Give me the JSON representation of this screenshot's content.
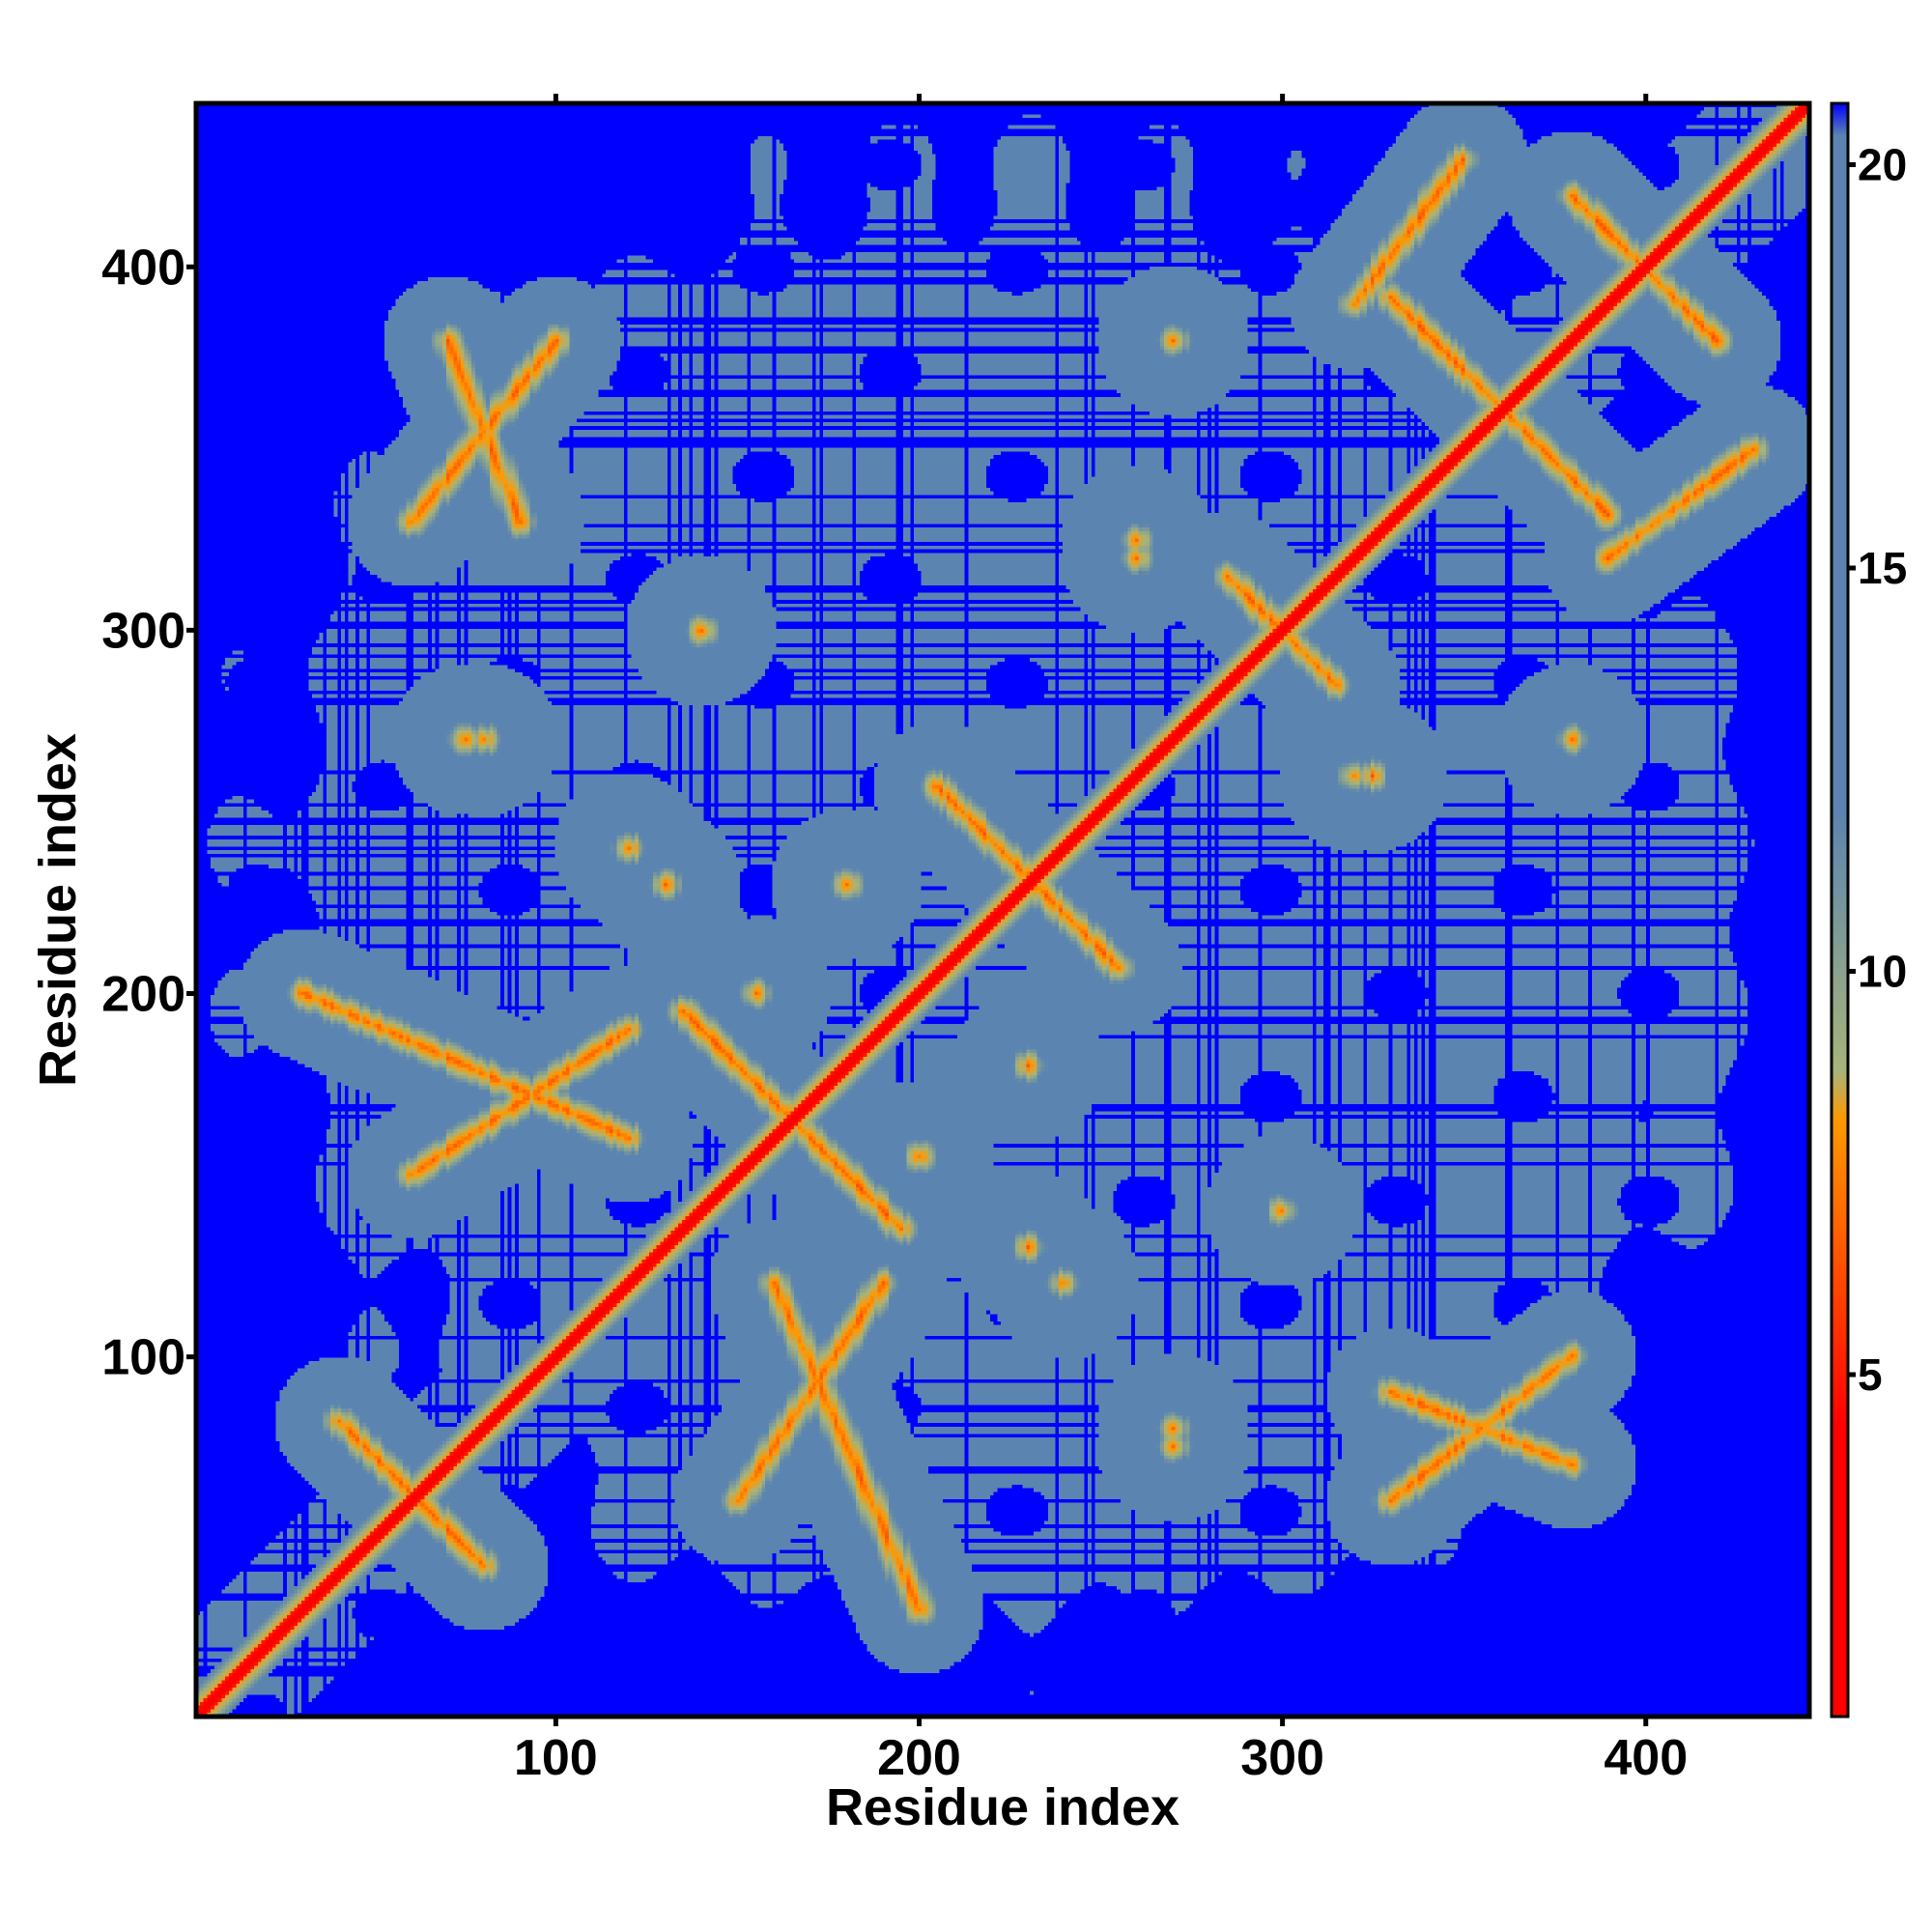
{
  "chart_data": {
    "type": "heatmap",
    "title": "",
    "xlabel": "Residue index",
    "ylabel": "Residue index",
    "n_residues": 445,
    "xlim": [
      1,
      445
    ],
    "ylim": [
      1,
      445
    ],
    "x_ticks": [
      100,
      200,
      300,
      400
    ],
    "y_ticks": [
      100,
      200,
      300,
      400
    ],
    "colorbar": {
      "ticks": [
        5,
        10,
        15,
        20
      ],
      "range": [
        1,
        21
      ],
      "colors": {
        "near": "#ff0000",
        "mid": "#ff9900",
        "transition": "#a8b47a",
        "far": "#5b85b0",
        "beyond": "#0000ff"
      },
      "threshold_beyond": 20.5
    },
    "description_of_values": "distance map; diagonal ~1-3, contacts ~5-8, protein interior ~12-20, background >20",
    "contact_features": [
      {
        "kind": "diagonal",
        "from": 1,
        "to": 445
      },
      {
        "kind": "anti_band",
        "cx": 60,
        "cy": 62,
        "len": 40
      },
      {
        "kind": "anti_band",
        "cx": 165,
        "cy": 165,
        "len": 60
      },
      {
        "kind": "anti_band",
        "cx": 230,
        "cy": 232,
        "len": 50
      },
      {
        "kind": "anti_band",
        "cx": 300,
        "cy": 300,
        "len": 30
      },
      {
        "kind": "anti_band",
        "cx": 360,
        "cy": 362,
        "len": 60
      },
      {
        "kind": "anti_band",
        "cx": 400,
        "cy": 400,
        "len": 40
      },
      {
        "kind": "parallel_band",
        "x0": 30,
        "y0": 200,
        "x1": 120,
        "y1": 160
      },
      {
        "kind": "parallel_band",
        "x0": 70,
        "y0": 380,
        "x1": 90,
        "y1": 330
      },
      {
        "kind": "parallel_band",
        "x0": 150,
        "y0": 60,
        "x1": 190,
        "y1": 120
      },
      {
        "kind": "parallel_band",
        "x0": 330,
        "y0": 60,
        "x1": 380,
        "y1": 100
      },
      {
        "kind": "parallel_band",
        "x0": 320,
        "y0": 390,
        "x1": 350,
        "y1": 430
      },
      {
        "kind": "spot",
        "x": 140,
        "y": 300
      },
      {
        "kind": "spot",
        "x": 80,
        "y": 270
      },
      {
        "kind": "spot",
        "x": 300,
        "y": 140
      },
      {
        "kind": "spot",
        "x": 270,
        "y": 380
      },
      {
        "kind": "spot",
        "x": 380,
        "y": 270
      },
      {
        "kind": "spot",
        "x": 230,
        "y": 130
      },
      {
        "kind": "spot",
        "x": 180,
        "y": 230
      },
      {
        "kind": "spot",
        "x": 120,
        "y": 240
      },
      {
        "kind": "spot",
        "x": 270,
        "y": 75
      },
      {
        "kind": "spot",
        "x": 200,
        "y": 155
      },
      {
        "kind": "spot",
        "x": 260,
        "y": 320
      },
      {
        "kind": "spot",
        "x": 325,
        "y": 260
      }
    ]
  }
}
